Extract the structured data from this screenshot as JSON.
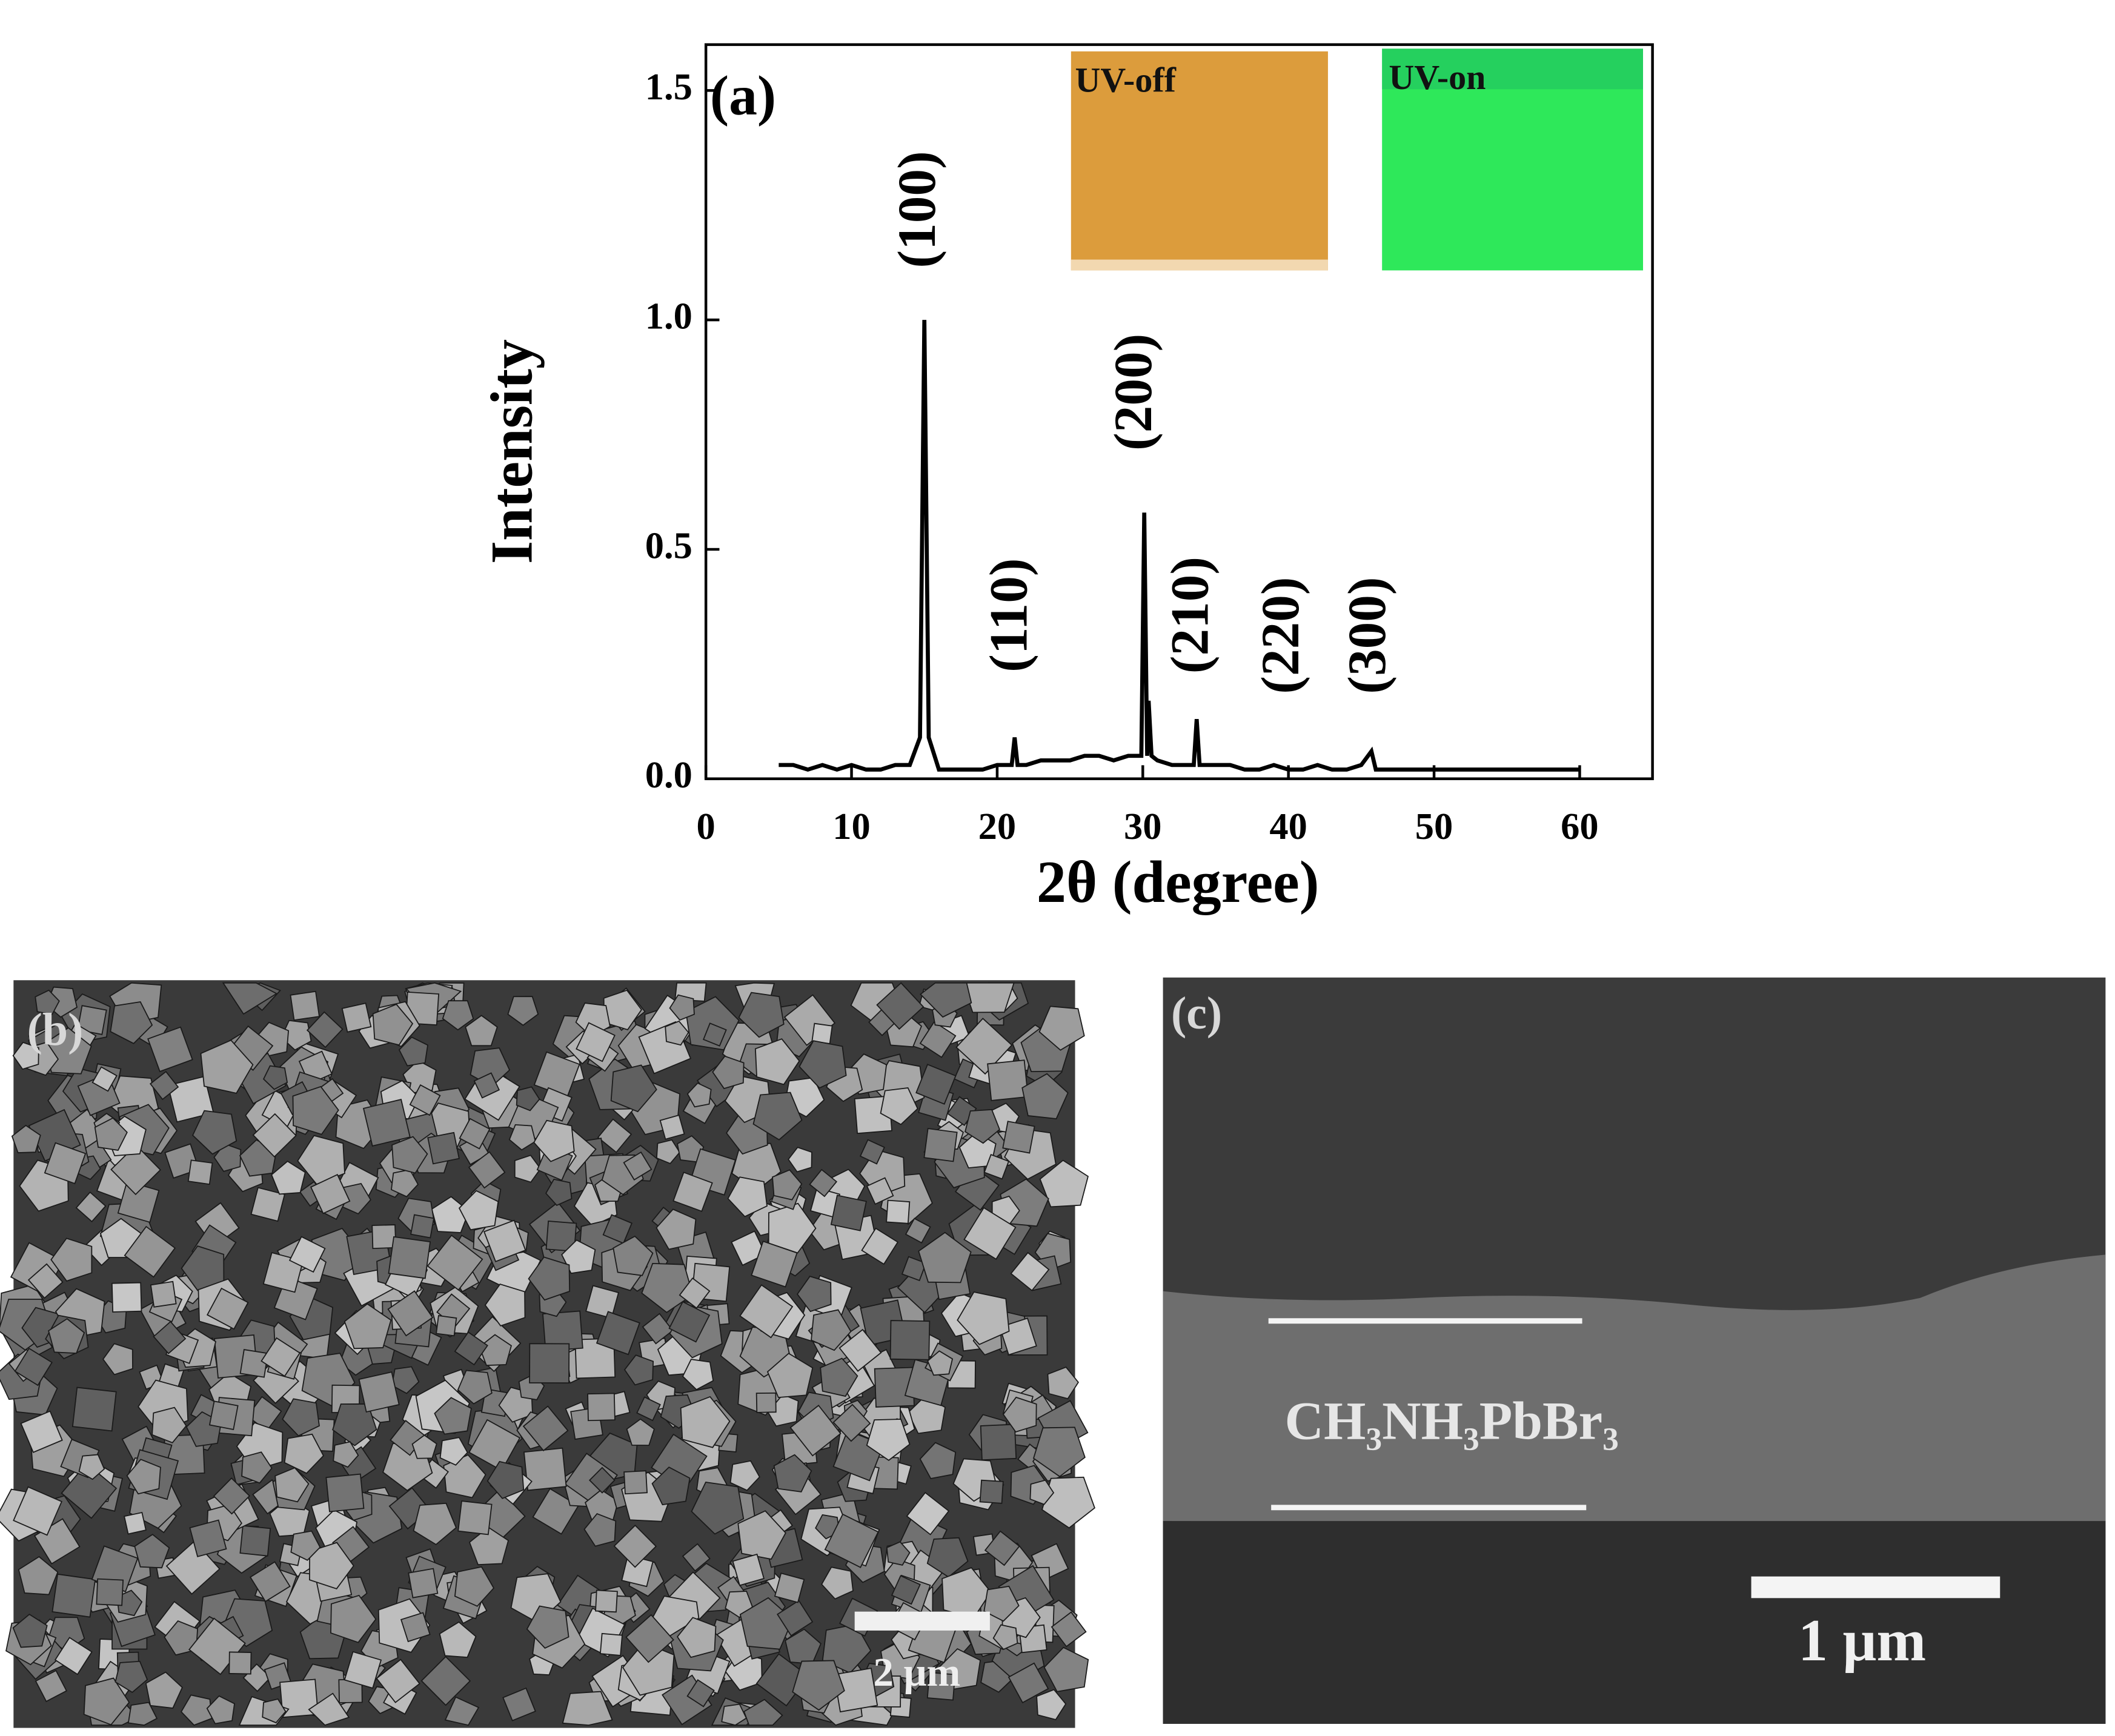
{
  "chart_data": {
    "type": "line",
    "x_label": "2θ (degree)",
    "y_label": "Intensity",
    "x": [
      5,
      6,
      7,
      8,
      9,
      10,
      11,
      12,
      13,
      14,
      14.7,
      15,
      15.3,
      16,
      17,
      18,
      19,
      20,
      21,
      21.2,
      21.4,
      22,
      23,
      24,
      25,
      26,
      27,
      28,
      29,
      29.9,
      30.1,
      30.3,
      30.4,
      30.6,
      31,
      32,
      33,
      33.5,
      33.7,
      33.9,
      34,
      35,
      36,
      37,
      38,
      39,
      40,
      41,
      42,
      43,
      44,
      45,
      45.7,
      46,
      47,
      48,
      49,
      50,
      51,
      52,
      53,
      54,
      55,
      56,
      57,
      58,
      59,
      60
    ],
    "values": [
      0.03,
      0.03,
      0.02,
      0.03,
      0.02,
      0.03,
      0.02,
      0.02,
      0.03,
      0.03,
      0.09,
      1.0,
      0.09,
      0.02,
      0.02,
      0.02,
      0.02,
      0.03,
      0.03,
      0.09,
      0.03,
      0.03,
      0.04,
      0.04,
      0.04,
      0.05,
      0.05,
      0.04,
      0.05,
      0.05,
      0.58,
      0.05,
      0.17,
      0.05,
      0.04,
      0.03,
      0.03,
      0.03,
      0.13,
      0.03,
      0.03,
      0.03,
      0.03,
      0.02,
      0.02,
      0.03,
      0.02,
      0.02,
      0.03,
      0.02,
      0.02,
      0.03,
      0.06,
      0.02,
      0.02,
      0.02,
      0.02,
      0.02,
      0.02,
      0.02,
      0.02,
      0.02,
      0.02,
      0.02,
      0.02,
      0.02,
      0.02,
      0.02
    ],
    "color": "#000000",
    "xlim": [
      0,
      65
    ],
    "ylim": [
      0,
      1.6
    ],
    "xticks": [
      0,
      10,
      20,
      30,
      40,
      50,
      60
    ],
    "yticks": [
      {
        "value": 0,
        "label": "0.0"
      },
      0.5,
      {
        "value": 1,
        "label": "1.0"
      },
      1.5
    ],
    "panel_label": "(a)",
    "peak_labels": [
      "(100)",
      "(110)",
      "(200)",
      "(210)",
      "(220)",
      "(300)"
    ],
    "inset_labels": [
      "UV-off",
      "UV-on"
    ]
  },
  "panel_b": {
    "label": "(b)",
    "scale_bar": "2 μm"
  },
  "panel_c": {
    "label": "(c)",
    "layer": "CH₃NH₃PbBr₃",
    "scale_bar": "1 μm"
  }
}
